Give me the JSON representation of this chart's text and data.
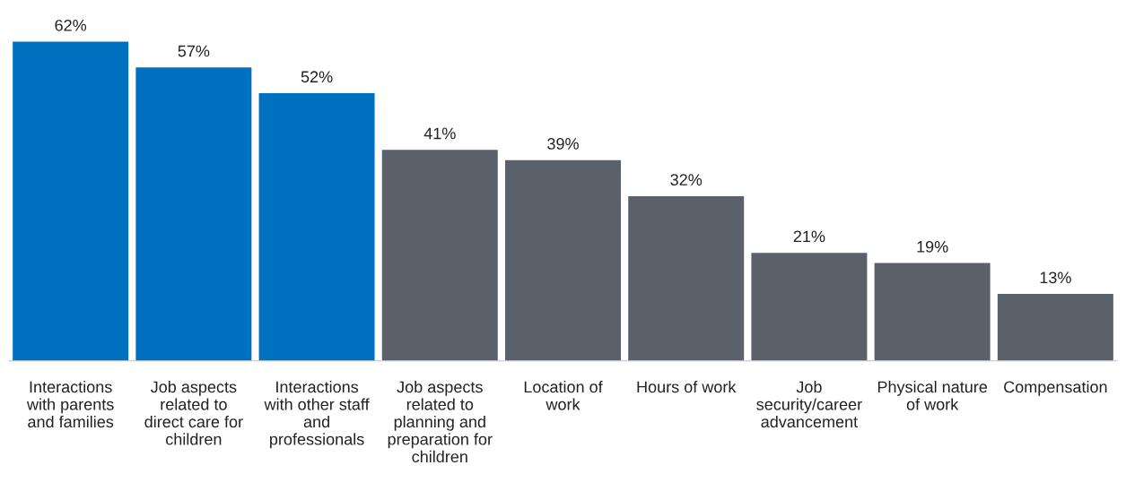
{
  "chart_data": {
    "type": "bar",
    "categories": [
      "Interactions\nwith parents\nand families",
      "Job aspects\nrelated to\ndirect care for\nchildren",
      "Interactions\nwith other staff\nand\nprofessionals",
      "Job aspects\nrelated to\nplanning and\npreparation for\nchildren",
      "Location of\nwork",
      "Hours of work",
      "Job\nsecurity/career\nadvancement",
      "Physical nature\nof work",
      "Compensation"
    ],
    "values": [
      62,
      57,
      52,
      41,
      39,
      32,
      21,
      19,
      13
    ],
    "colors": [
      "#0070c0",
      "#0070c0",
      "#0070c0",
      "#5b616b",
      "#5b616b",
      "#5b616b",
      "#5b616b",
      "#5b616b",
      "#5b616b"
    ],
    "value_labels": [
      "62%",
      "57%",
      "52%",
      "41%",
      "39%",
      "32%",
      "21%",
      "19%",
      "13%"
    ],
    "tick_labels": "x"
  }
}
